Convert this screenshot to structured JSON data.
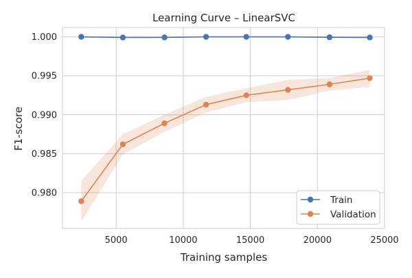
{
  "chart_data": {
    "type": "line",
    "title": "Learning Curve – LinearSVC",
    "xlabel": "Training samples",
    "ylabel": "F1-score",
    "xlim": [
      1000,
      25000
    ],
    "ylim": [
      0.9754,
      1.0012
    ],
    "xticks": [
      5000,
      10000,
      15000,
      20000,
      25000
    ],
    "xtick_labels": [
      "5000",
      "10000",
      "15000",
      "20000",
      "25000"
    ],
    "yticks": [
      0.98,
      0.985,
      0.99,
      0.995,
      1.0
    ],
    "ytick_labels": [
      "0.980",
      "0.985",
      "0.990",
      "0.995",
      "1.000"
    ],
    "grid": true,
    "legend": "lower-right",
    "x": [
      2400,
      5500,
      8600,
      11700,
      14700,
      17800,
      20900,
      23900
    ],
    "series": [
      {
        "name": "Train",
        "color": "#4c72b0",
        "marker": "circle",
        "values": [
          1.0,
          0.99992,
          0.99993,
          1.0,
          1.0,
          1.0,
          0.99995,
          0.99992
        ],
        "band_lower": [
          0.99998,
          0.99989,
          0.9999,
          0.99998,
          0.99998,
          0.99998,
          0.99992,
          0.9999
        ],
        "band_upper": [
          1.0,
          0.99995,
          0.99996,
          1.0,
          1.0,
          1.0,
          0.99998,
          0.99995
        ]
      },
      {
        "name": "Validation",
        "color": "#dd8452",
        "marker": "circle",
        "values": [
          0.9789,
          0.9862,
          0.9889,
          0.9913,
          0.9925,
          0.9932,
          0.9939,
          0.9947
        ],
        "band_lower": [
          0.9763,
          0.9849,
          0.9878,
          0.9903,
          0.9916,
          0.9919,
          0.9931,
          0.9936
        ],
        "band_upper": [
          0.9815,
          0.9875,
          0.99,
          0.9923,
          0.9934,
          0.9945,
          0.9947,
          0.9958
        ]
      }
    ]
  }
}
